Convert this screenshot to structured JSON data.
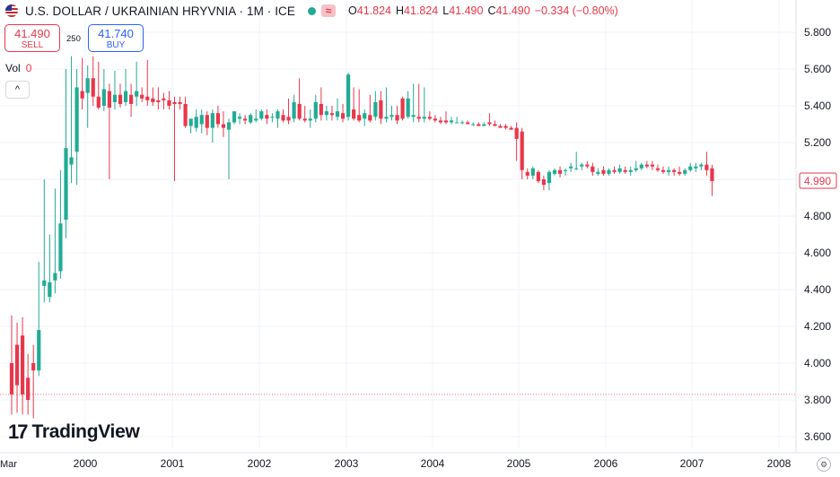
{
  "header": {
    "title": "U.S. DOLLAR / UKRAINIAN HRYVNIA · 1M · ICE",
    "ohlc": [
      {
        "k": "O",
        "v": "41.824"
      },
      {
        "k": "H",
        "v": "41.824"
      },
      {
        "k": "L",
        "v": "41.490"
      },
      {
        "k": "C",
        "v": "41.490"
      },
      {
        "k": "",
        "v": "−0.334 (−0.80%)"
      }
    ]
  },
  "trade": {
    "sell_price": "41.490",
    "sell_label": "SELL",
    "spread": "250",
    "buy_price": "41.740",
    "buy_label": "BUY"
  },
  "volume": {
    "label": "Vol",
    "value": "0"
  },
  "collapse_glyph": "^",
  "logo": {
    "mark": "17",
    "text": "TradingView"
  },
  "colors": {
    "up": "#22ab94",
    "down": "#e8374b",
    "grid": "#f0f3fa",
    "axis_text": "#131722"
  },
  "chart_data": {
    "type": "candlestick",
    "y_axis": {
      "min": 3.6,
      "max": 5.9,
      "ticks": [
        "5.800",
        "5.600",
        "5.400",
        "5.200",
        "5.000",
        "4.800",
        "4.600",
        "4.400",
        "4.200",
        "4.000",
        "3.800",
        "3.600"
      ]
    },
    "x_axis": {
      "first_label": "Mar",
      "labels": [
        "2000",
        "2001",
        "2002",
        "2003",
        "2004",
        "2005",
        "2006",
        "2007",
        "2008"
      ]
    },
    "last_price_label": "4.990",
    "reference_line": 3.83,
    "grid": true,
    "ohlc": [
      [
        4.0,
        4.26,
        3.72,
        3.83
      ],
      [
        4.1,
        4.22,
        3.73,
        3.88
      ],
      [
        4.15,
        4.25,
        3.72,
        3.83
      ],
      [
        3.92,
        4.05,
        3.72,
        3.8
      ],
      [
        4.0,
        4.1,
        3.7,
        3.96
      ],
      [
        3.96,
        4.55,
        3.93,
        4.18
      ],
      [
        4.42,
        5.0,
        4.33,
        4.45
      ],
      [
        4.36,
        4.7,
        4.33,
        4.44
      ],
      [
        4.45,
        4.95,
        4.38,
        4.49
      ],
      [
        4.5,
        5.05,
        4.46,
        4.76
      ],
      [
        4.78,
        5.6,
        4.68,
        5.17
      ],
      [
        5.08,
        5.67,
        4.98,
        5.12
      ],
      [
        5.15,
        5.6,
        4.97,
        5.5
      ],
      [
        5.48,
        5.66,
        5.38,
        5.44
      ],
      [
        5.47,
        5.62,
        5.28,
        5.55
      ],
      [
        5.55,
        5.67,
        5.4,
        5.45
      ],
      [
        5.45,
        5.64,
        5.38,
        5.39
      ],
      [
        5.4,
        5.6,
        5.37,
        5.49
      ],
      [
        5.48,
        5.52,
        5.0,
        5.39
      ],
      [
        5.42,
        5.59,
        5.38,
        5.46
      ],
      [
        5.46,
        5.52,
        5.39,
        5.41
      ],
      [
        5.42,
        5.6,
        5.4,
        5.48
      ],
      [
        5.46,
        5.52,
        5.34,
        5.41
      ],
      [
        5.45,
        5.64,
        5.4,
        5.48
      ],
      [
        5.46,
        5.5,
        5.42,
        5.44
      ],
      [
        5.45,
        5.65,
        5.4,
        5.43
      ],
      [
        5.44,
        5.5,
        5.4,
        5.42
      ],
      [
        5.43,
        5.5,
        5.38,
        5.42
      ],
      [
        5.44,
        5.47,
        5.38,
        5.43
      ],
      [
        5.43,
        5.48,
        5.38,
        5.4
      ],
      [
        5.42,
        5.45,
        4.99,
        5.41
      ],
      [
        5.42,
        5.45,
        5.38,
        5.41
      ],
      [
        5.41,
        5.45,
        5.28,
        5.29
      ],
      [
        5.29,
        5.32,
        5.25,
        5.33
      ],
      [
        5.28,
        5.38,
        5.26,
        5.34
      ],
      [
        5.3,
        5.38,
        5.25,
        5.35
      ],
      [
        5.35,
        5.37,
        5.24,
        5.28
      ],
      [
        5.28,
        5.38,
        5.2,
        5.36
      ],
      [
        5.36,
        5.4,
        5.28,
        5.3
      ],
      [
        5.3,
        5.37,
        5.23,
        5.28
      ],
      [
        5.27,
        5.33,
        5.0,
        5.31
      ],
      [
        5.31,
        5.37,
        5.3,
        5.37
      ],
      [
        5.33,
        5.36,
        5.3,
        5.34
      ],
      [
        5.33,
        5.35,
        5.3,
        5.32
      ],
      [
        5.31,
        5.36,
        5.3,
        5.35
      ],
      [
        5.32,
        5.38,
        5.31,
        5.33
      ],
      [
        5.33,
        5.38,
        5.32,
        5.37
      ],
      [
        5.35,
        5.38,
        5.3,
        5.33
      ],
      [
        5.34,
        5.36,
        5.31,
        5.34
      ],
      [
        5.33,
        5.38,
        5.28,
        5.37
      ],
      [
        5.35,
        5.38,
        5.31,
        5.32
      ],
      [
        5.34,
        5.44,
        5.3,
        5.32
      ],
      [
        5.33,
        5.46,
        5.31,
        5.42
      ],
      [
        5.41,
        5.55,
        5.32,
        5.33
      ],
      [
        5.33,
        5.4,
        5.31,
        5.32
      ],
      [
        5.32,
        5.38,
        5.28,
        5.33
      ],
      [
        5.33,
        5.46,
        5.31,
        5.42
      ],
      [
        5.41,
        5.5,
        5.32,
        5.35
      ],
      [
        5.35,
        5.4,
        5.32,
        5.37
      ],
      [
        5.36,
        5.4,
        5.32,
        5.35
      ],
      [
        5.34,
        5.44,
        5.32,
        5.37
      ],
      [
        5.36,
        5.41,
        5.31,
        5.33
      ],
      [
        5.34,
        5.58,
        5.32,
        5.57
      ],
      [
        5.38,
        5.5,
        5.32,
        5.33
      ],
      [
        5.35,
        5.49,
        5.31,
        5.32
      ],
      [
        5.33,
        5.38,
        5.29,
        5.36
      ],
      [
        5.35,
        5.46,
        5.31,
        5.32
      ],
      [
        5.34,
        5.48,
        5.32,
        5.42
      ],
      [
        5.43,
        5.48,
        5.3,
        5.33
      ],
      [
        5.33,
        5.5,
        5.31,
        5.34
      ],
      [
        5.34,
        5.4,
        5.32,
        5.35
      ],
      [
        5.35,
        5.4,
        5.3,
        5.32
      ],
      [
        5.44,
        5.45,
        5.32,
        5.33
      ],
      [
        5.34,
        5.48,
        5.33,
        5.44
      ],
      [
        5.34,
        5.52,
        5.31,
        5.35
      ],
      [
        5.34,
        5.52,
        5.31,
        5.33
      ],
      [
        5.33,
        5.5,
        5.31,
        5.34
      ],
      [
        5.34,
        5.37,
        5.32,
        5.33
      ],
      [
        5.33,
        5.35,
        5.31,
        5.32
      ],
      [
        5.32,
        5.34,
        5.3,
        5.31
      ],
      [
        5.32,
        5.37,
        5.3,
        5.31
      ],
      [
        5.31,
        5.34,
        5.3,
        5.32
      ],
      [
        5.31,
        5.34,
        5.31,
        5.31
      ],
      [
        5.31,
        5.32,
        5.3,
        5.31
      ],
      [
        5.31,
        5.32,
        5.3,
        5.3
      ],
      [
        5.3,
        5.31,
        5.29,
        5.3
      ],
      [
        5.3,
        5.31,
        5.29,
        5.29
      ],
      [
        5.29,
        5.31,
        5.29,
        5.3
      ],
      [
        5.31,
        5.36,
        5.29,
        5.3
      ],
      [
        5.3,
        5.32,
        5.29,
        5.29
      ],
      [
        5.29,
        5.3,
        5.28,
        5.28
      ],
      [
        5.29,
        5.3,
        5.27,
        5.28
      ],
      [
        5.28,
        5.29,
        5.27,
        5.27
      ],
      [
        5.28,
        5.31,
        5.1,
        5.22
      ],
      [
        5.26,
        5.28,
        5.0,
        5.05
      ],
      [
        5.04,
        5.06,
        5.0,
        5.02
      ],
      [
        5.02,
        5.07,
        5.0,
        5.06
      ],
      [
        5.04,
        5.05,
        4.98,
        4.99
      ],
      [
        5.0,
        5.02,
        4.94,
        4.97
      ],
      [
        4.98,
        5.05,
        4.94,
        5.04
      ],
      [
        5.03,
        5.06,
        5.02,
        5.05
      ],
      [
        5.05,
        5.07,
        5.01,
        5.03
      ],
      [
        5.05,
        5.06,
        5.02,
        5.05
      ],
      [
        5.06,
        5.09,
        5.04,
        5.07
      ],
      [
        5.06,
        5.15,
        5.05,
        5.06
      ],
      [
        5.07,
        5.09,
        5.05,
        5.08
      ],
      [
        5.08,
        5.1,
        5.06,
        5.07
      ],
      [
        5.07,
        5.09,
        5.02,
        5.04
      ],
      [
        5.03,
        5.06,
        5.02,
        5.04
      ],
      [
        5.05,
        5.07,
        5.02,
        5.03
      ],
      [
        5.03,
        5.06,
        5.02,
        5.05
      ],
      [
        5.05,
        5.07,
        5.03,
        5.04
      ],
      [
        5.04,
        5.08,
        5.03,
        5.06
      ],
      [
        5.05,
        5.07,
        5.03,
        5.04
      ],
      [
        5.04,
        5.07,
        5.02,
        5.05
      ],
      [
        5.05,
        5.1,
        5.04,
        5.06
      ],
      [
        5.06,
        5.09,
        5.05,
        5.08
      ],
      [
        5.08,
        5.1,
        5.06,
        5.07
      ],
      [
        5.08,
        5.1,
        5.05,
        5.07
      ],
      [
        5.06,
        5.08,
        5.04,
        5.05
      ],
      [
        5.05,
        5.07,
        5.03,
        5.04
      ],
      [
        5.04,
        5.07,
        5.02,
        5.05
      ],
      [
        5.05,
        5.06,
        5.02,
        5.04
      ],
      [
        5.04,
        5.07,
        5.02,
        5.03
      ],
      [
        5.03,
        5.06,
        5.02,
        5.05
      ],
      [
        5.05,
        5.09,
        5.04,
        5.07
      ],
      [
        5.06,
        5.09,
        5.04,
        5.07
      ],
      [
        5.07,
        5.09,
        5.05,
        5.08
      ],
      [
        5.08,
        5.15,
        5.02,
        5.05
      ],
      [
        5.06,
        5.08,
        4.91,
        4.99
      ]
    ]
  }
}
